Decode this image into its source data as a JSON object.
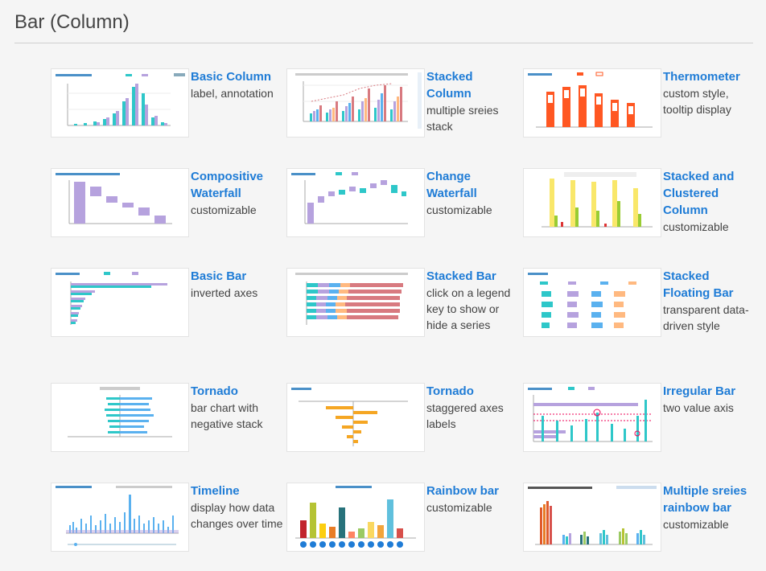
{
  "page": {
    "title": "Bar (Column)"
  },
  "cards": [
    {
      "title": "Basic Column",
      "desc": "label, annotation"
    },
    {
      "title": "Stacked Column",
      "desc": "multiple sreies stack"
    },
    {
      "title": "Thermometer",
      "desc": "custom style, tooltip display"
    },
    {
      "title": "Compositive Waterfall",
      "desc": "customizable"
    },
    {
      "title": "Change Waterfall",
      "desc": "customizable"
    },
    {
      "title": "Stacked and Clustered Column",
      "desc": "customizable"
    },
    {
      "title": "Basic Bar",
      "desc": "inverted axes"
    },
    {
      "title": "Stacked Bar",
      "desc": "click on a legend key to show or hide a series"
    },
    {
      "title": "Stacked Floating Bar",
      "desc": "transparent data-driven style"
    },
    {
      "title": "Tornado",
      "desc": "bar chart with negative stack"
    },
    {
      "title": "Tornado",
      "desc": "staggered axes labels"
    },
    {
      "title": "Irregular Bar",
      "desc": "two value axis"
    },
    {
      "title": "Timeline",
      "desc": "display how data changes over time"
    },
    {
      "title": "Rainbow bar",
      "desc": "customizable"
    },
    {
      "title": "Multiple sreies rainbow bar",
      "desc": "customizable"
    }
  ],
  "colors": {
    "link": "#1f7cd6",
    "teal": "#2ec7c9",
    "purple": "#b6a2de",
    "blue": "#5ab1ef",
    "orange": "#ffb980",
    "red": "#d87a80"
  }
}
